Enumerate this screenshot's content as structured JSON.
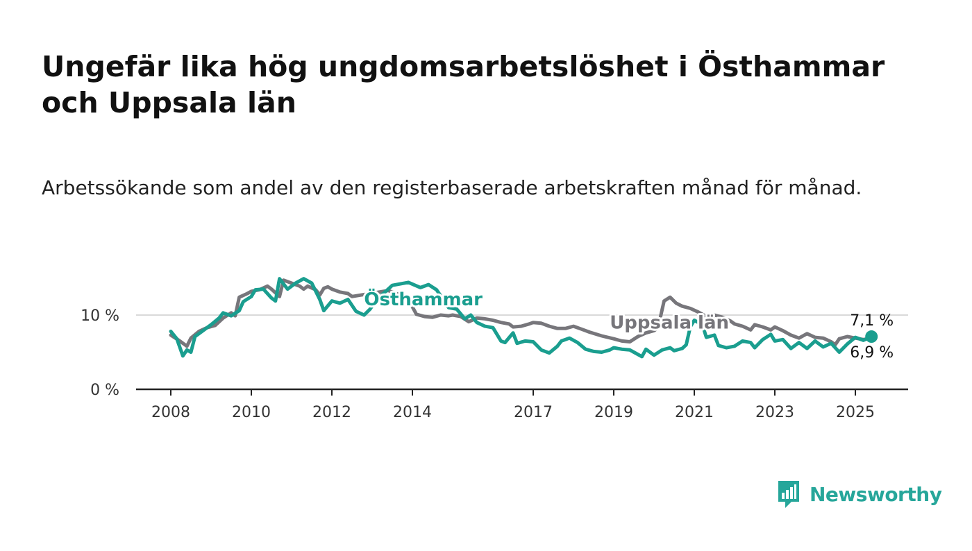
{
  "title": "Ungefär lika hög ungdomsarbetslöshet i Östhammar och Uppsala län",
  "subtitle": "Arbetssökande som andel av den registerbaserade arbetskraften månad för månad.",
  "brand": {
    "name": "Newsworthy",
    "icon": "newsworthy-logo-icon",
    "color": "#26a69a"
  },
  "chart_data": {
    "type": "line",
    "x_unit": "year",
    "xlim": [
      2007.5,
      2026.2
    ],
    "ylim": [
      0,
      20
    ],
    "y_ticks": [
      {
        "value": 0,
        "label": "0 %"
      },
      {
        "value": 10,
        "label": "10 %"
      }
    ],
    "x_ticks": [
      {
        "value": 2008,
        "label": "2008"
      },
      {
        "value": 2010,
        "label": "2010"
      },
      {
        "value": 2012,
        "label": "2012"
      },
      {
        "value": 2014,
        "label": "2014"
      },
      {
        "value": 2017,
        "label": "2017"
      },
      {
        "value": 2019,
        "label": "2019"
      },
      {
        "value": 2021,
        "label": "2021"
      },
      {
        "value": 2023,
        "label": "2023"
      },
      {
        "value": 2025,
        "label": "2025"
      }
    ],
    "grid": "horizontal",
    "series": [
      {
        "name": "Uppsala län",
        "color": "#77767b",
        "label_at": [
          2018.9,
          8.2
        ],
        "end_label": "6,9 %",
        "end_value": 6.9,
        "points": [
          [
            2008.0,
            7.3
          ],
          [
            2008.2,
            6.6
          ],
          [
            2008.4,
            5.8
          ],
          [
            2008.5,
            6.9
          ],
          [
            2008.7,
            7.8
          ],
          [
            2008.9,
            8.3
          ],
          [
            2009.1,
            8.6
          ],
          [
            2009.3,
            9.6
          ],
          [
            2009.5,
            10.3
          ],
          [
            2009.6,
            9.9
          ],
          [
            2009.7,
            12.4
          ],
          [
            2009.9,
            12.9
          ],
          [
            2010.0,
            13.2
          ],
          [
            2010.2,
            13.4
          ],
          [
            2010.4,
            13.9
          ],
          [
            2010.5,
            13.5
          ],
          [
            2010.7,
            12.5
          ],
          [
            2010.8,
            14.7
          ],
          [
            2011.0,
            14.3
          ],
          [
            2011.2,
            13.9
          ],
          [
            2011.3,
            13.5
          ],
          [
            2011.4,
            13.9
          ],
          [
            2011.6,
            13.4
          ],
          [
            2011.7,
            12.7
          ],
          [
            2011.8,
            13.6
          ],
          [
            2011.9,
            13.8
          ],
          [
            2012.0,
            13.5
          ],
          [
            2012.2,
            13.1
          ],
          [
            2012.4,
            12.9
          ],
          [
            2012.5,
            12.5
          ],
          [
            2013.4,
            13.3
          ],
          [
            2013.6,
            12.9
          ],
          [
            2013.8,
            12.6
          ],
          [
            2014.0,
            11.1
          ],
          [
            2014.1,
            10.1
          ],
          [
            2014.3,
            9.8
          ],
          [
            2014.5,
            9.7
          ],
          [
            2014.7,
            10.0
          ],
          [
            2014.9,
            9.9
          ],
          [
            2015.0,
            10.0
          ],
          [
            2015.2,
            9.8
          ],
          [
            2015.4,
            9.1
          ],
          [
            2015.6,
            9.6
          ],
          [
            2015.8,
            9.5
          ],
          [
            2016.0,
            9.3
          ],
          [
            2016.2,
            9.0
          ],
          [
            2016.4,
            8.8
          ],
          [
            2016.5,
            8.4
          ],
          [
            2016.7,
            8.5
          ],
          [
            2016.9,
            8.8
          ],
          [
            2017.0,
            9.0
          ],
          [
            2017.2,
            8.9
          ],
          [
            2017.4,
            8.5
          ],
          [
            2017.6,
            8.2
          ],
          [
            2017.8,
            8.2
          ],
          [
            2018.0,
            8.5
          ],
          [
            2018.2,
            8.1
          ],
          [
            2018.4,
            7.7
          ],
          [
            2018.7,
            7.2
          ],
          [
            2019.0,
            6.8
          ],
          [
            2019.2,
            6.5
          ],
          [
            2019.4,
            6.4
          ],
          [
            2019.6,
            7.1
          ],
          [
            2019.8,
            7.6
          ],
          [
            2020.0,
            7.9
          ],
          [
            2020.1,
            8.3
          ],
          [
            2020.25,
            11.9
          ],
          [
            2020.4,
            12.4
          ],
          [
            2020.55,
            11.6
          ],
          [
            2020.7,
            11.2
          ],
          [
            2020.9,
            10.9
          ],
          [
            2021.1,
            10.4
          ],
          [
            2021.3,
            9.8
          ],
          [
            2021.4,
            9.2
          ],
          [
            2021.5,
            10.0
          ],
          [
            2021.7,
            9.7
          ],
          [
            2021.9,
            9.2
          ],
          [
            2022.0,
            8.8
          ],
          [
            2022.2,
            8.5
          ],
          [
            2022.4,
            8.0
          ],
          [
            2022.5,
            8.7
          ],
          [
            2022.7,
            8.4
          ],
          [
            2022.9,
            8.0
          ],
          [
            2023.0,
            8.4
          ],
          [
            2023.2,
            7.9
          ],
          [
            2023.4,
            7.3
          ],
          [
            2023.6,
            6.9
          ],
          [
            2023.8,
            7.5
          ],
          [
            2024.0,
            7.0
          ],
          [
            2024.2,
            6.9
          ],
          [
            2024.4,
            6.4
          ],
          [
            2024.5,
            6.0
          ],
          [
            2024.6,
            6.8
          ],
          [
            2024.8,
            7.1
          ],
          [
            2025.0,
            6.9
          ],
          [
            2025.2,
            6.7
          ],
          [
            2025.4,
            6.9
          ]
        ]
      },
      {
        "name": "Östhammar",
        "color": "#1a9e8f",
        "label_at": [
          2012.8,
          11.3
        ],
        "end_label": "7,1 %",
        "end_value": 7.1,
        "points": [
          [
            2008.0,
            7.8
          ],
          [
            2008.15,
            6.8
          ],
          [
            2008.3,
            4.5
          ],
          [
            2008.4,
            5.3
          ],
          [
            2008.5,
            5.0
          ],
          [
            2008.6,
            7.1
          ],
          [
            2008.8,
            7.9
          ],
          [
            2009.0,
            8.7
          ],
          [
            2009.2,
            9.6
          ],
          [
            2009.3,
            10.3
          ],
          [
            2009.5,
            9.9
          ],
          [
            2009.7,
            10.6
          ],
          [
            2009.8,
            11.8
          ],
          [
            2010.0,
            12.5
          ],
          [
            2010.1,
            13.4
          ],
          [
            2010.3,
            13.5
          ],
          [
            2010.5,
            12.3
          ],
          [
            2010.6,
            11.9
          ],
          [
            2010.7,
            14.9
          ],
          [
            2010.9,
            13.5
          ],
          [
            2011.1,
            14.3
          ],
          [
            2011.3,
            14.9
          ],
          [
            2011.5,
            14.3
          ],
          [
            2011.7,
            12.1
          ],
          [
            2011.8,
            10.6
          ],
          [
            2012.0,
            11.9
          ],
          [
            2012.2,
            11.6
          ],
          [
            2012.4,
            12.1
          ],
          [
            2012.6,
            10.5
          ],
          [
            2012.8,
            10.0
          ],
          [
            2012.95,
            10.8
          ],
          [
            2013.1,
            12.0
          ],
          [
            2013.5,
            14.0
          ],
          [
            2013.9,
            14.4
          ],
          [
            2014.2,
            13.7
          ],
          [
            2014.4,
            14.1
          ],
          [
            2014.6,
            13.4
          ],
          [
            2014.9,
            11.0
          ],
          [
            2015.1,
            10.8
          ],
          [
            2015.3,
            9.5
          ],
          [
            2015.45,
            10.0
          ],
          [
            2015.6,
            9.0
          ],
          [
            2015.8,
            8.5
          ],
          [
            2016.0,
            8.3
          ],
          [
            2016.2,
            6.5
          ],
          [
            2016.3,
            6.3
          ],
          [
            2016.5,
            7.6
          ],
          [
            2016.6,
            6.2
          ],
          [
            2016.8,
            6.5
          ],
          [
            2017.0,
            6.4
          ],
          [
            2017.2,
            5.3
          ],
          [
            2017.4,
            4.9
          ],
          [
            2017.6,
            5.8
          ],
          [
            2017.7,
            6.5
          ],
          [
            2017.9,
            6.9
          ],
          [
            2018.1,
            6.3
          ],
          [
            2018.3,
            5.4
          ],
          [
            2018.5,
            5.1
          ],
          [
            2018.7,
            5.0
          ],
          [
            2018.9,
            5.3
          ],
          [
            2019.0,
            5.6
          ],
          [
            2019.2,
            5.4
          ],
          [
            2019.4,
            5.3
          ],
          [
            2019.5,
            5.0
          ],
          [
            2019.7,
            4.4
          ],
          [
            2019.8,
            5.4
          ],
          [
            2020.0,
            4.6
          ],
          [
            2020.2,
            5.3
          ],
          [
            2020.4,
            5.6
          ],
          [
            2020.5,
            5.2
          ],
          [
            2020.7,
            5.5
          ],
          [
            2020.8,
            6.0
          ],
          [
            2020.9,
            8.4
          ],
          [
            2021.0,
            9.3
          ],
          [
            2021.2,
            8.7
          ],
          [
            2021.3,
            7.0
          ],
          [
            2021.5,
            7.3
          ],
          [
            2021.6,
            5.9
          ],
          [
            2021.8,
            5.6
          ],
          [
            2022.0,
            5.8
          ],
          [
            2022.2,
            6.5
          ],
          [
            2022.4,
            6.3
          ],
          [
            2022.5,
            5.6
          ],
          [
            2022.7,
            6.7
          ],
          [
            2022.9,
            7.4
          ],
          [
            2023.0,
            6.5
          ],
          [
            2023.2,
            6.7
          ],
          [
            2023.4,
            5.5
          ],
          [
            2023.6,
            6.3
          ],
          [
            2023.8,
            5.5
          ],
          [
            2024.0,
            6.5
          ],
          [
            2024.2,
            5.7
          ],
          [
            2024.4,
            6.2
          ],
          [
            2024.6,
            5.0
          ],
          [
            2024.8,
            6.1
          ],
          [
            2025.0,
            7.0
          ],
          [
            2025.2,
            6.6
          ],
          [
            2025.4,
            7.1
          ]
        ]
      }
    ]
  }
}
